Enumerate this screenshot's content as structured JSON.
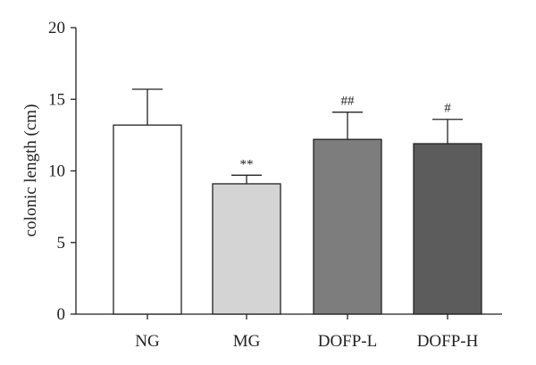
{
  "chart_data": {
    "type": "bar",
    "title": "",
    "xlabel": "",
    "ylabel": "colonic length (cm)",
    "ylim": [
      0,
      20
    ],
    "yticks": [
      0,
      5,
      10,
      15,
      20
    ],
    "categories": [
      "NG",
      "MG",
      "DOFP-L",
      "DOFP-H"
    ],
    "values": [
      13.2,
      9.1,
      12.2,
      11.9
    ],
    "errors": [
      2.5,
      0.6,
      1.9,
      1.7
    ],
    "annotations": [
      "",
      "**",
      "##",
      "#"
    ],
    "bar_colors": [
      "#ffffff",
      "#d4d4d4",
      "#7d7d7d",
      "#5c5c5c"
    ],
    "grid": false,
    "legend": "none"
  }
}
